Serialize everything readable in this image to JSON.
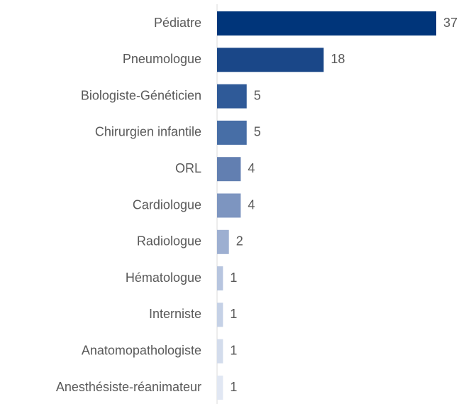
{
  "chart_data": {
    "type": "bar",
    "orientation": "horizontal",
    "categories": [
      "Pédiatre",
      "Pneumologue",
      "Biologiste-Généticien",
      "Chirurgien infantile",
      "ORL",
      "Cardiologue",
      "Radiologue",
      "Hématologue",
      "Interniste",
      "Anatomopathologiste",
      "Anesthésiste-réanimateur"
    ],
    "values": [
      37,
      18,
      5,
      5,
      4,
      4,
      2,
      1,
      1,
      1,
      1
    ],
    "colors": [
      "#00357a",
      "#1a4788",
      "#2f5a98",
      "#476ea6",
      "#627fb1",
      "#7d95c0",
      "#9dafd1",
      "#b7c5df",
      "#c5d1e6",
      "#d3dcec",
      "#e1e7f3"
    ]
  }
}
